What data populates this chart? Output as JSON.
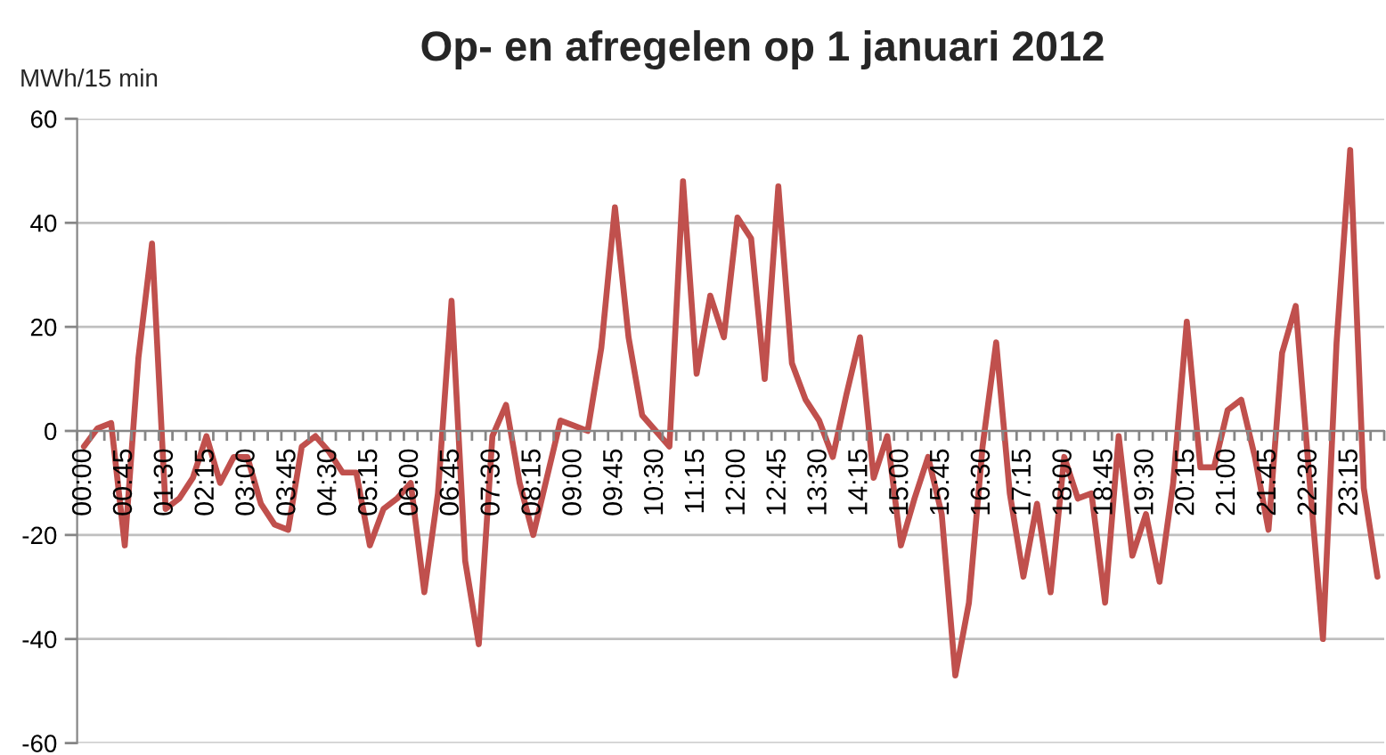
{
  "chart_data": {
    "type": "line",
    "title": "Op- en afregelen op 1 januari 2012",
    "ylabel": "MWh/15 min",
    "categories": [
      "00:00",
      null,
      null,
      "00:45",
      null,
      null,
      "01:30",
      null,
      null,
      "02:15",
      null,
      null,
      "03:00",
      null,
      null,
      "03:45",
      null,
      null,
      "04:30",
      null,
      null,
      "05:15",
      null,
      null,
      "06:00",
      null,
      null,
      "06:45",
      null,
      null,
      "07:30",
      null,
      null,
      "08:15",
      null,
      null,
      "09:00",
      null,
      null,
      "09:45",
      null,
      null,
      "10:30",
      null,
      null,
      "11:15",
      null,
      null,
      "12:00",
      null,
      null,
      "12:45",
      null,
      null,
      "13:30",
      null,
      null,
      "14:15",
      null,
      null,
      "15:00",
      null,
      null,
      "15:45",
      null,
      null,
      "16:30",
      null,
      null,
      "17:15",
      null,
      null,
      "18:00",
      null,
      null,
      "18:45",
      null,
      null,
      "19:30",
      null,
      null,
      "20:15",
      null,
      null,
      "21:00",
      null,
      null,
      "21:45",
      null,
      null,
      "22:30",
      null,
      null,
      "23:15",
      null,
      null
    ],
    "series": [
      {
        "color": "#c0504d",
        "values": [
          -3,
          0.5,
          1.5,
          -22,
          14,
          36,
          -15,
          -13,
          -9,
          -1,
          -10,
          -5,
          -5,
          -14,
          -18,
          -19,
          -3,
          -1,
          -4,
          -8,
          -8,
          -22,
          -15,
          -13,
          -10,
          -31,
          -12,
          25,
          -25,
          -41,
          -1,
          5,
          -10,
          -20,
          -9,
          2,
          1,
          0,
          16,
          43,
          18,
          3,
          0,
          -3,
          48,
          11,
          26,
          18,
          41,
          37,
          10,
          47,
          13,
          6,
          2,
          -5,
          7,
          18,
          -9,
          -1,
          -22,
          -13,
          -5,
          -16,
          -47,
          -33,
          -3,
          17,
          -12,
          -28,
          -14,
          -31,
          -5,
          -13,
          -12,
          -33,
          -1,
          -24,
          -16,
          -29,
          -10,
          21,
          -7,
          -7,
          4,
          6,
          -5,
          -19,
          15,
          24,
          -9,
          -40,
          17,
          54,
          -11,
          -28
        ]
      }
    ],
    "ylim": [
      -60,
      60
    ],
    "yticks": [
      -60,
      -40,
      -20,
      0,
      20,
      40,
      60
    ],
    "grid": "y"
  }
}
